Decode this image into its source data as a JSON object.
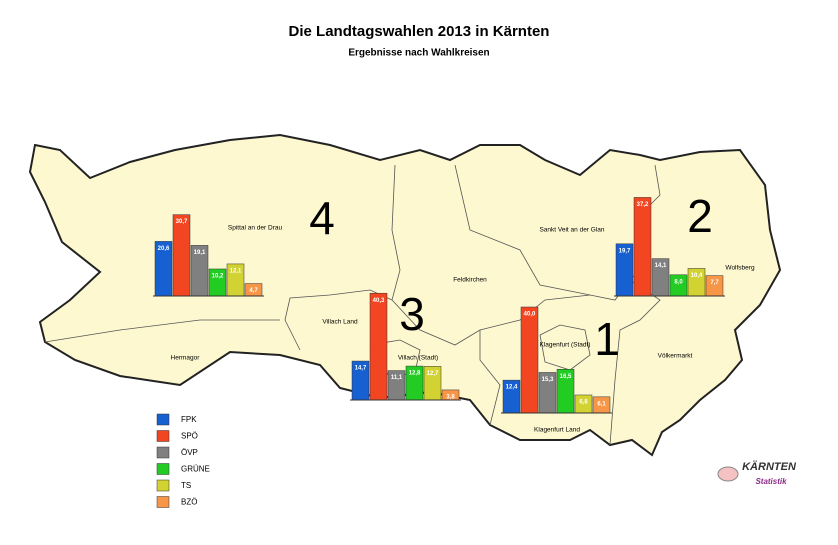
{
  "header": {
    "title": "Die Landtagswahlen 2013 in Kärnten",
    "subtitle": "Ergebnisse nach Wahlkreisen"
  },
  "legend": [
    {
      "name": "FPK",
      "color": "#1660d2"
    },
    {
      "name": "SPÖ",
      "color": "#f24622"
    },
    {
      "name": "ÖVP",
      "color": "#808080"
    },
    {
      "name": "GRÜNE",
      "color": "#22cc22"
    },
    {
      "name": "TS",
      "color": "#d2d232"
    },
    {
      "name": "BZÖ",
      "color": "#f79646"
    }
  ],
  "districts": [
    {
      "number": "4",
      "values": [
        20.6,
        30.7,
        19.1,
        10.2,
        12.1,
        4.7
      ],
      "value_labels": [
        "20,6",
        "30,7",
        "19,1",
        "10,2",
        "12,1",
        "4,7"
      ]
    },
    {
      "number": "3",
      "values": [
        14.7,
        40.3,
        11.1,
        12.8,
        12.7,
        3.8
      ],
      "value_labels": [
        "14,7",
        "40,3",
        "11,1",
        "12,8",
        "12,7",
        "3,8"
      ]
    },
    {
      "number": "1",
      "values": [
        12.4,
        40.0,
        15.3,
        16.5,
        6.8,
        6.1
      ],
      "value_labels": [
        "12,4",
        "40,0",
        "15,3",
        "16,5",
        "6,8",
        "6,1"
      ]
    },
    {
      "number": "2",
      "values": [
        19.7,
        37.2,
        14.1,
        8.0,
        10.4,
        7.7
      ],
      "value_labels": [
        "19,7",
        "37,2",
        "14,1",
        "8,0",
        "10,4",
        "7,7"
      ]
    }
  ],
  "places": [
    "Spittal an der Drau",
    "Hermagor",
    "Villach Land",
    "Villach (Stadt)",
    "Feldkirchen",
    "Sankt Veit an der Glan",
    "Wolfsberg",
    "Völkermarkt",
    "Klagenfurt (Stadt)",
    "Klagenfurt Land"
  ],
  "logo": {
    "name": "KÄRNTEN",
    "sub": "Statistik"
  }
}
